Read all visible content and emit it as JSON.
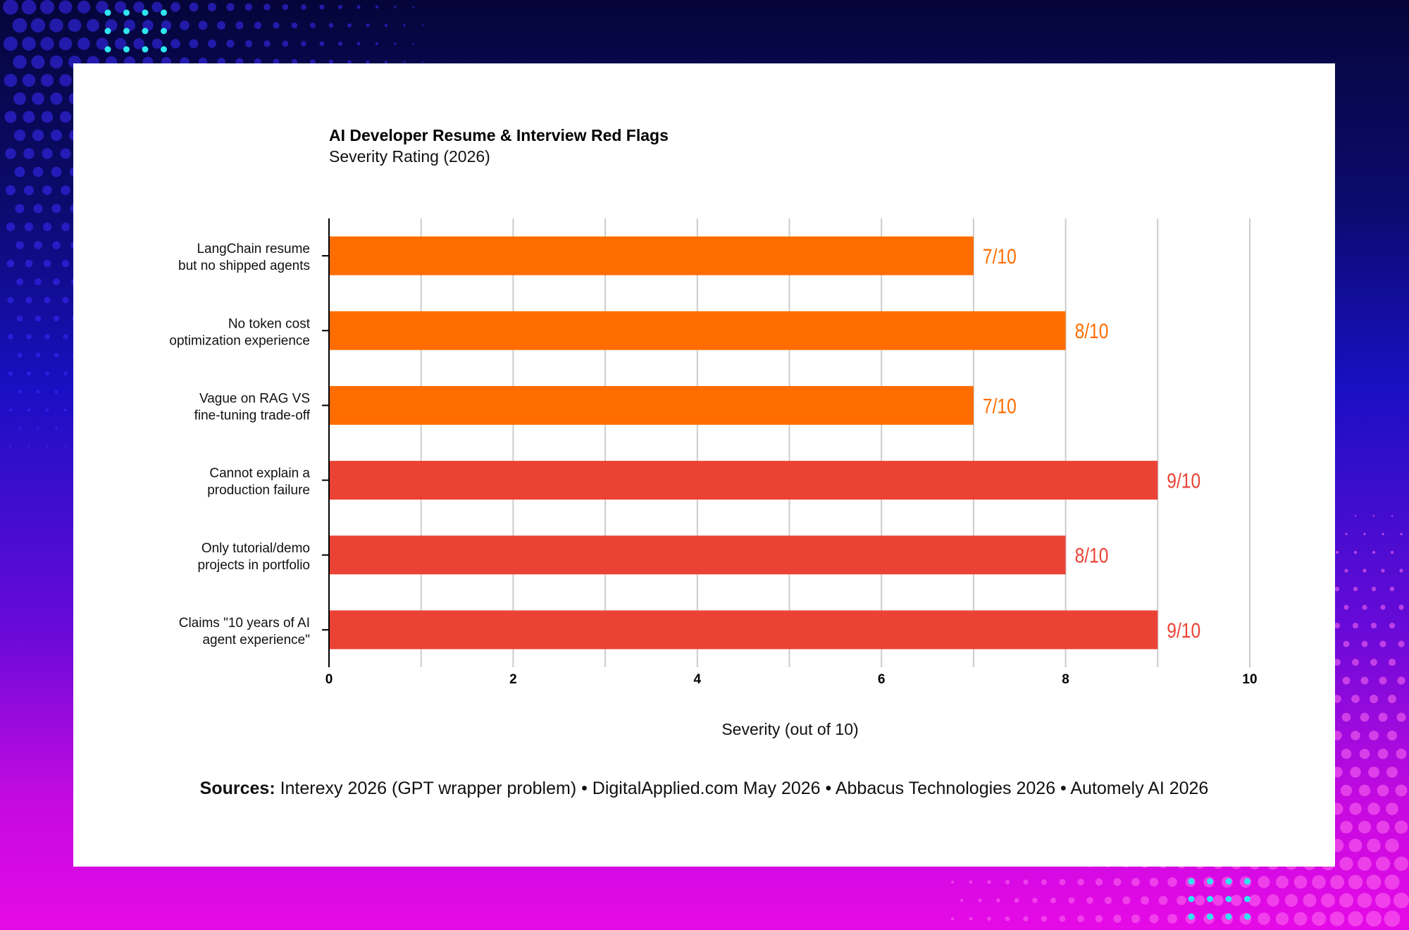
{
  "chart_data": {
    "type": "bar",
    "orientation": "horizontal",
    "title": "AI Developer Resume & Interview Red Flags",
    "subtitle": "Severity Rating (2026)",
    "xlabel": "Severity (out of 10)",
    "ylabel": "",
    "xlim": [
      0,
      10
    ],
    "x_ticks": [
      "0",
      "2",
      "4",
      "6",
      "8",
      "10"
    ],
    "grid": true,
    "categories": [
      [
        "LangChain resume",
        "but no shipped agents"
      ],
      [
        "No token cost",
        "optimization experience"
      ],
      [
        "Vague on RAG VS",
        "fine-tuning trade-off"
      ],
      [
        "Cannot explain a",
        "production failure"
      ],
      [
        "Only tutorial/demo",
        "projects in portfolio"
      ],
      [
        "Claims \"10 years of AI",
        "agent experience\""
      ]
    ],
    "values": [
      7,
      8,
      7,
      9,
      8,
      9
    ],
    "value_labels": [
      "7/10",
      "8/10",
      "7/10",
      "9/10",
      "8/10",
      "9/10"
    ],
    "bar_colors": [
      "#ff6d00",
      "#ff6d00",
      "#ff6d00",
      "#ea4335",
      "#ea4335",
      "#ea4335"
    ]
  },
  "footer": {
    "sources_label": "Sources:",
    "sources_text": " Interexy 2026 (GPT wrapper problem) • DigitalApplied.com May 2026 • Abbacus Technologies 2026 • Automely AI 2026"
  },
  "colors": {
    "orange": "#ff6d00",
    "red": "#ea4335",
    "grid": "#cccccc",
    "axis": "#000000",
    "text": "#111111",
    "accent_dots": "#2ee6f0"
  }
}
